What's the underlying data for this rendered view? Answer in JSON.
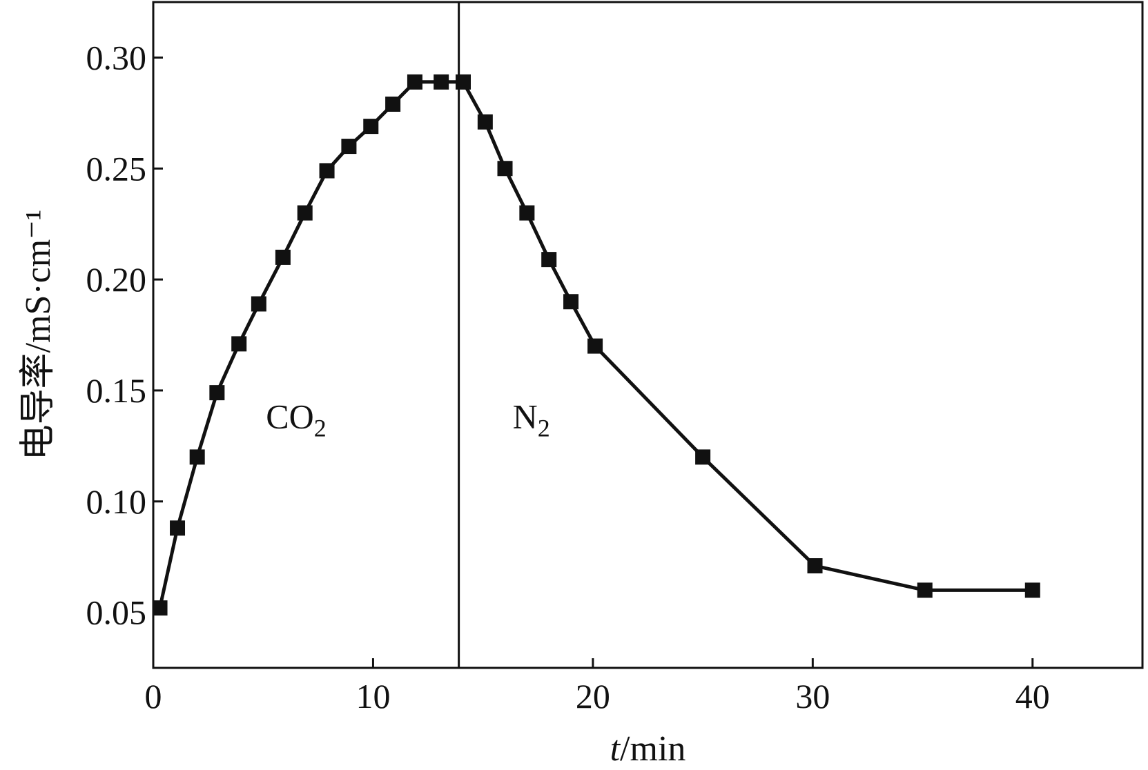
{
  "chart_data": {
    "type": "line",
    "title": "",
    "xlabel": {
      "italic": "t",
      "rest": "/min"
    },
    "ylabel": "电导率/mS·cm⁻¹",
    "xlim": [
      0,
      45
    ],
    "ylim": [
      0.025,
      0.325
    ],
    "x_ticks": [
      0,
      10,
      20,
      30,
      40
    ],
    "x_tick_labels": [
      "0",
      "10",
      "20",
      "30",
      "40"
    ],
    "y_ticks": [
      0.05,
      0.1,
      0.15,
      0.2,
      0.25,
      0.3
    ],
    "y_tick_labels": [
      "0.05",
      "0.10",
      "0.15",
      "0.20",
      "0.25",
      "0.30"
    ],
    "grid": false,
    "series": [
      {
        "color": "#111111",
        "marker": "square",
        "x": [
          0.3,
          1.1,
          2.0,
          2.9,
          3.9,
          4.8,
          5.9,
          6.9,
          7.9,
          8.9,
          9.9,
          10.9,
          11.9,
          13.1,
          14.1,
          15.1,
          16.0,
          17.0,
          18.0,
          19.0,
          20.1,
          25.0,
          30.1,
          35.1,
          40.0
        ],
        "y": [
          0.052,
          0.088,
          0.12,
          0.149,
          0.171,
          0.189,
          0.21,
          0.23,
          0.249,
          0.26,
          0.269,
          0.279,
          0.289,
          0.289,
          0.289,
          0.271,
          0.25,
          0.23,
          0.209,
          0.19,
          0.17,
          0.12,
          0.071,
          0.06,
          0.06
        ]
      }
    ],
    "vertical_line_x": 13.9,
    "annotations": [
      {
        "id": "co2",
        "base": "CO",
        "sub": "2",
        "x": 6.5,
        "y": 0.133
      },
      {
        "id": "n2",
        "base": "N",
        "sub": "2",
        "x": 17.2,
        "y": 0.133
      }
    ]
  }
}
